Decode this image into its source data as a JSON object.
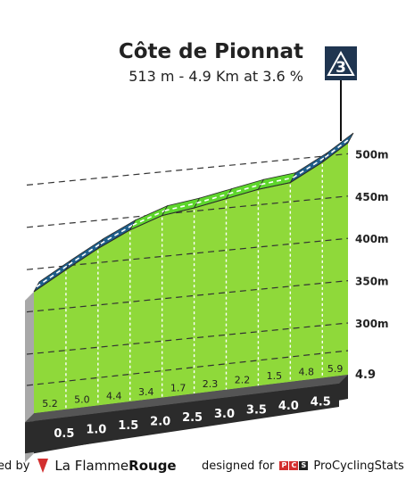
{
  "chart_data": {
    "type": "area",
    "title": "Côte de Pionnat",
    "subtitle": "513 m - 4.9 Km at 3.6 %",
    "category": "3",
    "y_ticks": [
      "300m",
      "350m",
      "400m",
      "450m",
      "500m"
    ],
    "ylim": [
      270,
      515
    ],
    "xlim": [
      0,
      4.9
    ],
    "end_km_label": "4.9",
    "km_markers": [
      {
        "km": 0.5,
        "label": "0.5"
      },
      {
        "km": 1.0,
        "label": "1.0"
      },
      {
        "km": 1.5,
        "label": "1.5"
      },
      {
        "km": 2.0,
        "label": "2.0"
      },
      {
        "km": 2.5,
        "label": "2.5"
      },
      {
        "km": 3.0,
        "label": "3.0"
      },
      {
        "km": 3.5,
        "label": "3.5"
      },
      {
        "km": 4.0,
        "label": "4.0"
      },
      {
        "km": 4.5,
        "label": "4.5"
      }
    ],
    "segments": [
      {
        "from": 0.0,
        "to": 0.5,
        "gradient": 5.2,
        "label": "5.2",
        "color": "#1f5f8b"
      },
      {
        "from": 0.5,
        "to": 1.0,
        "gradient": 5.0,
        "label": "5.0",
        "color": "#1f5f8b"
      },
      {
        "from": 1.0,
        "to": 1.5,
        "gradient": 4.4,
        "label": "4.4",
        "color": "#1f5f8b"
      },
      {
        "from": 1.5,
        "to": 2.0,
        "gradient": 3.4,
        "label": "3.4",
        "color": "#5ed62c"
      },
      {
        "from": 2.0,
        "to": 2.5,
        "gradient": 1.7,
        "label": "1.7",
        "color": "#5ed62c"
      },
      {
        "from": 2.5,
        "to": 3.0,
        "gradient": 2.3,
        "label": "2.3",
        "color": "#5ed62c"
      },
      {
        "from": 3.0,
        "to": 3.5,
        "gradient": 2.2,
        "label": "2.2",
        "color": "#5ed62c"
      },
      {
        "from": 3.5,
        "to": 4.0,
        "gradient": 1.5,
        "label": "1.5",
        "color": "#5ed62c"
      },
      {
        "from": 4.0,
        "to": 4.5,
        "gradient": 4.8,
        "label": "4.8",
        "color": "#1f5f8b"
      },
      {
        "from": 4.5,
        "to": 4.9,
        "gradient": 5.9,
        "label": "5.9",
        "color": "#1f5f8b"
      }
    ],
    "elevation": [
      {
        "km": 0.0,
        "alt": 337
      },
      {
        "km": 0.5,
        "alt": 363
      },
      {
        "km": 1.0,
        "alt": 388
      },
      {
        "km": 1.5,
        "alt": 410
      },
      {
        "km": 2.0,
        "alt": 427
      },
      {
        "km": 2.5,
        "alt": 436
      },
      {
        "km": 3.0,
        "alt": 447
      },
      {
        "km": 3.5,
        "alt": 458
      },
      {
        "km": 4.0,
        "alt": 466
      },
      {
        "km": 4.5,
        "alt": 490
      },
      {
        "km": 4.9,
        "alt": 513
      }
    ],
    "colors": {
      "fill": "#8fd93a",
      "climb": "#1f5f8b",
      "mild": "#5ed62c",
      "base": "#2b2b2b",
      "start_side": "#a8a8a8"
    }
  },
  "footer": {
    "powered_by": "red by",
    "brand_left": "La Flamme",
    "brand_right": "Rouge",
    "designed_for": "designed for",
    "pcs": "ProCyclingStats"
  }
}
